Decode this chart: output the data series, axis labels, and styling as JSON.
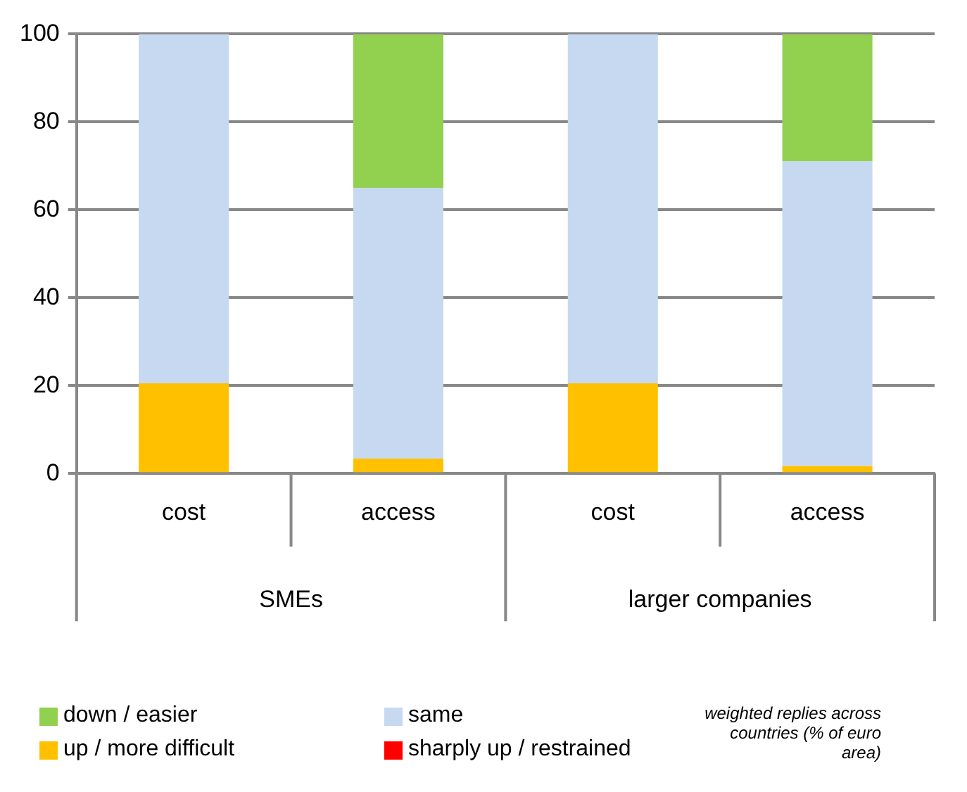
{
  "chart_data": {
    "type": "bar",
    "stacked": true,
    "categories": [
      "cost",
      "access",
      "cost",
      "access"
    ],
    "series": [
      {
        "name": "sharply up / restrained",
        "color": "#ff0000",
        "values": [
          0,
          0,
          0,
          0
        ]
      },
      {
        "name": "up / more difficult",
        "color": "#ffc000",
        "values": [
          20.5,
          3.4,
          20.5,
          1.7
        ]
      },
      {
        "name": "same",
        "color": "#c6d9f1",
        "values": [
          79.5,
          61.6,
          79.5,
          69.3
        ]
      },
      {
        "name": "down / easier",
        "color": "#92d050",
        "values": [
          0,
          35,
          0,
          29
        ]
      }
    ],
    "ylim": [
      0,
      100
    ],
    "yticks": [
      0,
      20,
      40,
      60,
      80,
      100
    ],
    "grid": "y",
    "legend": "bottom",
    "annotations": [
      "SMEs",
      "larger companies",
      "weighted replies across countries (% of  euro area)"
    ]
  }
}
